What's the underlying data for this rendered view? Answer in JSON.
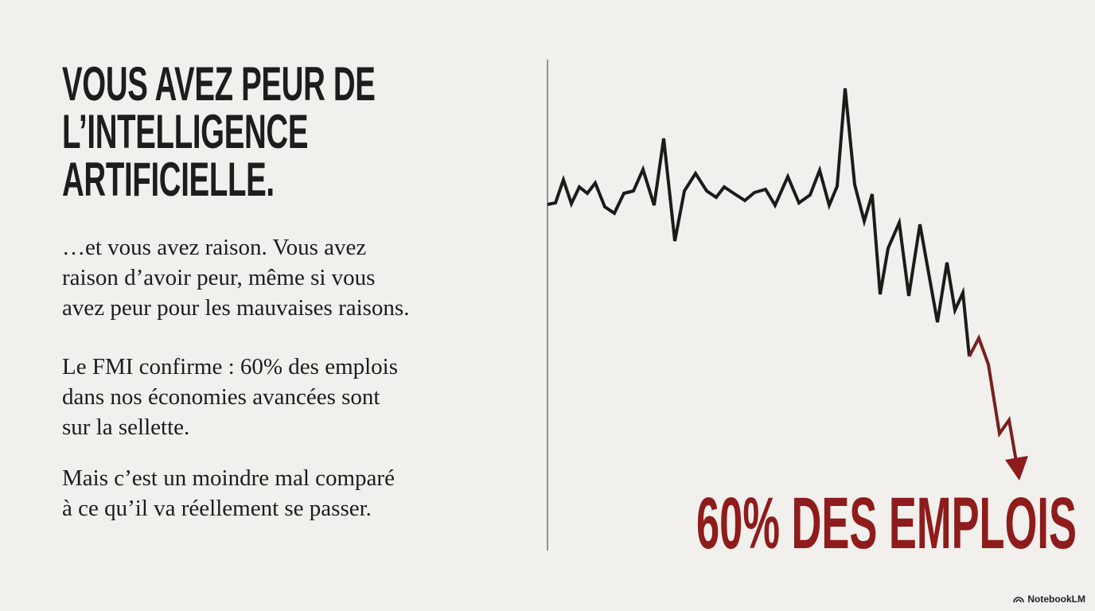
{
  "title": [
    "VOUS AVEZ PEUR DE",
    "L’INTELLIGENCE",
    "ARTIFICIELLE."
  ],
  "paragraphs": [
    [
      "…et vous avez raison. Vous avez",
      "raison d’avoir peur, même si vous",
      "avez peur pour les mauvaises raisons."
    ],
    [
      "Le FMI confirme : 60% des emplois",
      "dans nos économies avancées sont",
      "sur la sellette."
    ],
    [
      "Mais c’est un moindre mal comparé",
      "à ce qu’il va réellement se passer."
    ]
  ],
  "graphic_label": "60% DES EMPLOIS",
  "brand": "NotebookLM"
}
